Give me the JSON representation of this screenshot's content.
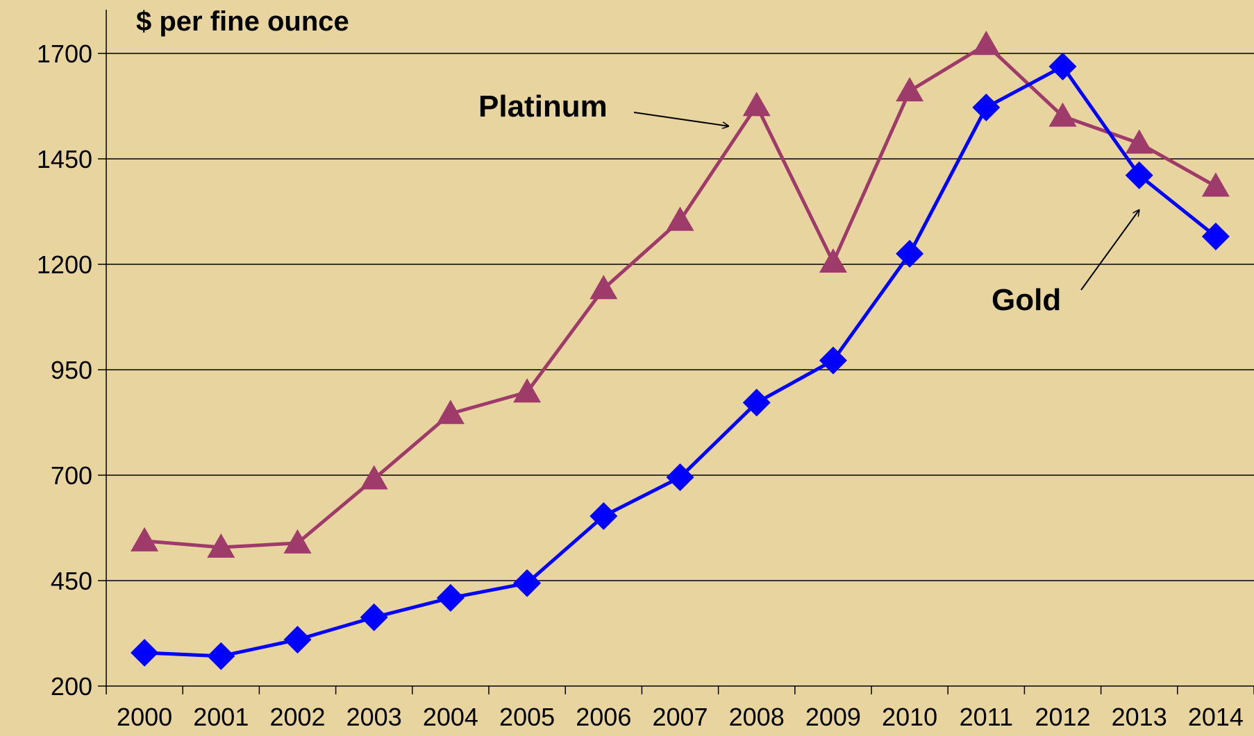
{
  "chart_data": {
    "type": "line",
    "title": "$ per fine ounce",
    "categories": [
      "2000",
      "2001",
      "2002",
      "2003",
      "2004",
      "2005",
      "2006",
      "2007",
      "2008",
      "2009",
      "2010",
      "2011",
      "2012",
      "2013",
      "2014"
    ],
    "series": [
      {
        "name": "Gold",
        "color": "#0000ff",
        "marker": "diamond",
        "values": [
          279,
          271,
          310,
          363,
          409,
          444,
          603,
          695,
          872,
          972,
          1225,
          1572,
          1669,
          1411,
          1266
        ]
      },
      {
        "name": "Platinum",
        "color": "#9e3b6b",
        "marker": "triangle",
        "values": [
          544,
          529,
          539,
          691,
          846,
          897,
          1142,
          1304,
          1576,
          1205,
          1611,
          1721,
          1551,
          1487,
          1385
        ]
      }
    ],
    "ylim": [
      200,
      1700
    ],
    "yticks": [
      200,
      450,
      700,
      950,
      1200,
      1450,
      1700
    ],
    "grid": true
  }
}
